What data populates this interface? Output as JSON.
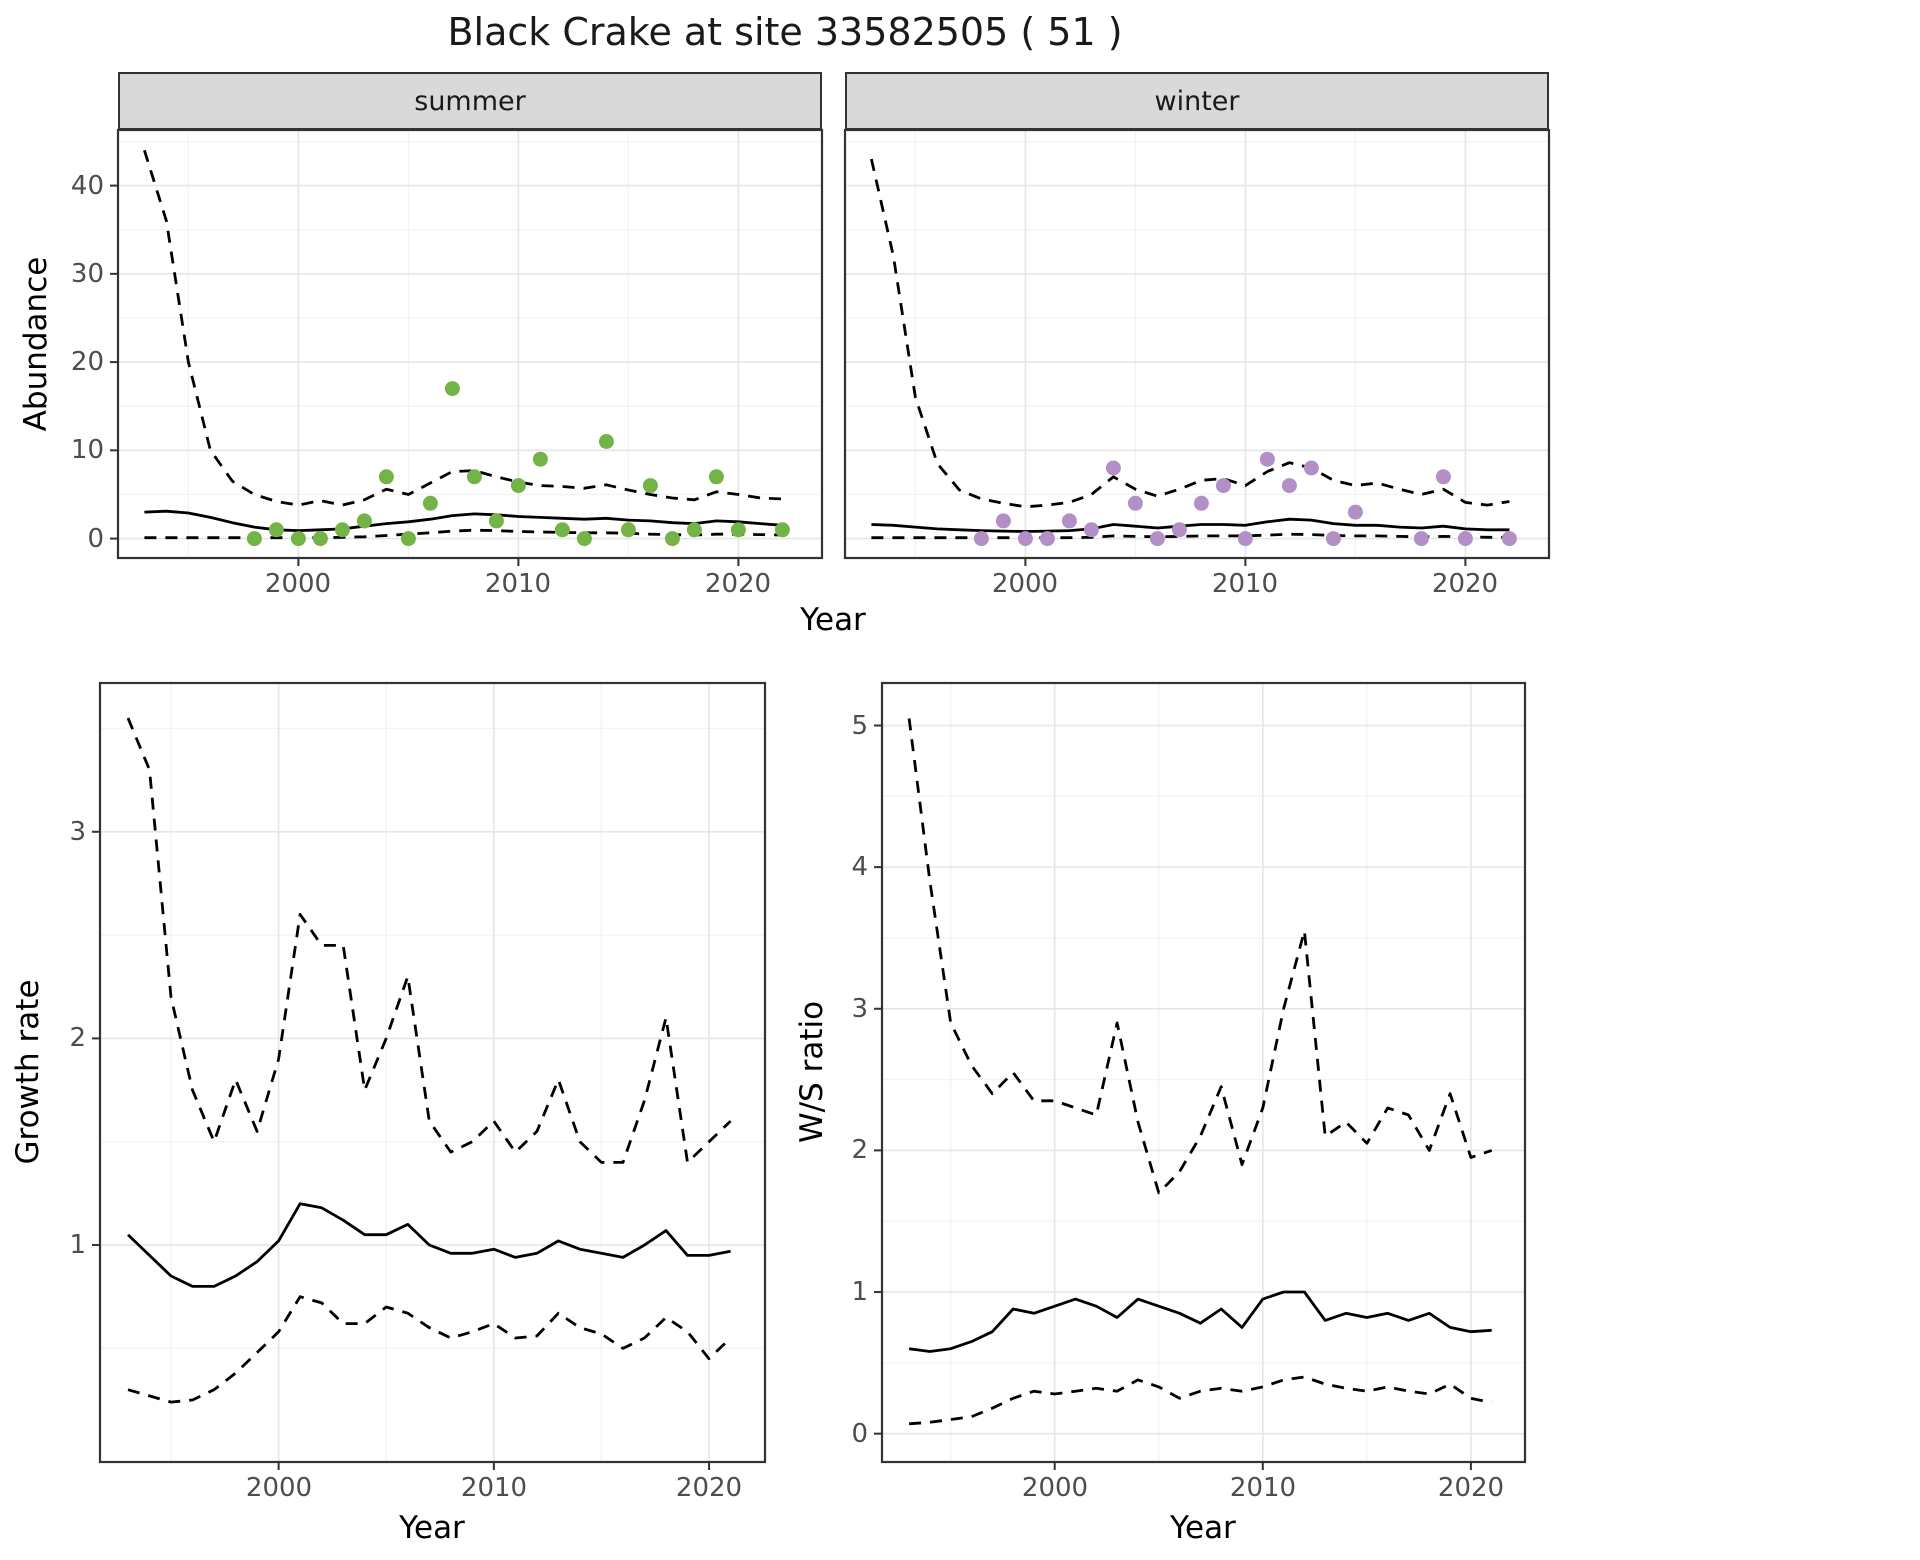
{
  "title": "Black Crake at site 33582505 ( 51 )",
  "labels": {
    "facet_summer": "summer",
    "facet_winter": "winter",
    "abundance_ylabel": "Abundance",
    "growth_ylabel": "Growth rate",
    "ws_ylabel": "W/S ratio",
    "year_xlabel": "Year"
  },
  "colors": {
    "summer_point": "#74b347",
    "winter_point": "#b38fc7",
    "line": "#000000",
    "grid_major": "#e6e6e6",
    "grid_minor": "#f3f3f3",
    "strip_bg": "#d9d9d9",
    "tick_label": "#4d4d4d",
    "panel_border": "#333333"
  },
  "chart_data": [
    {
      "panel": "abundance-summer",
      "type": "line+scatter",
      "facet_label": "summer",
      "xlabel": "Year",
      "ylabel": "Abundance",
      "xlim": [
        1991.8,
        2023.8
      ],
      "ylim": [
        -2.2,
        46.3
      ],
      "xticks": [
        2000,
        2010,
        2020
      ],
      "yticks": [
        0,
        10,
        20,
        30,
        40
      ],
      "x": [
        1993,
        1994,
        1995,
        1996,
        1997,
        1998,
        1999,
        2000,
        2001,
        2002,
        2003,
        2004,
        2005,
        2006,
        2007,
        2008,
        2009,
        2010,
        2011,
        2012,
        2013,
        2014,
        2015,
        2016,
        2017,
        2018,
        2019,
        2020,
        2021,
        2022
      ],
      "series": [
        {
          "name": "ci_upper",
          "style": "dashed",
          "y": [
            44,
            36,
            20,
            10,
            6.5,
            5,
            4.2,
            3.8,
            4.3,
            3.8,
            4.4,
            5.6,
            5,
            6.3,
            7.6,
            7.7,
            7,
            6.4,
            6,
            5.9,
            5.7,
            6.1,
            5.5,
            5,
            4.6,
            4.4,
            5.3,
            5,
            4.6,
            4.5
          ]
        },
        {
          "name": "fit_mean",
          "style": "solid",
          "y": [
            3,
            3.1,
            2.9,
            2.4,
            1.8,
            1.3,
            1,
            0.9,
            1,
            1.1,
            1.4,
            1.7,
            1.9,
            2.2,
            2.6,
            2.8,
            2.7,
            2.5,
            2.4,
            2.3,
            2.2,
            2.3,
            2.1,
            2,
            1.8,
            1.7,
            2,
            1.9,
            1.7,
            1.5
          ]
        },
        {
          "name": "ci_lower",
          "style": "dashed",
          "y": [
            0.1,
            0.1,
            0.1,
            0.1,
            0.1,
            0.1,
            0.1,
            0.1,
            0.1,
            0.15,
            0.2,
            0.35,
            0.5,
            0.65,
            0.85,
            0.95,
            0.9,
            0.8,
            0.75,
            0.7,
            0.65,
            0.65,
            0.6,
            0.5,
            0.45,
            0.4,
            0.5,
            0.5,
            0.45,
            0.4
          ]
        }
      ],
      "points": {
        "name": "observed_counts",
        "color_key": "summer_point",
        "x": [
          1998,
          1999,
          2000,
          2001,
          2002,
          2003,
          2004,
          2005,
          2006,
          2007,
          2008,
          2009,
          2010,
          2011,
          2012,
          2013,
          2014,
          2015,
          2016,
          2017,
          2018,
          2019,
          2020,
          2022
        ],
        "y": [
          0,
          1,
          0,
          0,
          1,
          2,
          7,
          0,
          4,
          17,
          7,
          2,
          6,
          9,
          1,
          0,
          11,
          1,
          6,
          0,
          1,
          7,
          1,
          1
        ]
      }
    },
    {
      "panel": "abundance-winter",
      "type": "line+scatter",
      "facet_label": "winter",
      "xlabel": "Year",
      "ylabel": "Abundance",
      "xlim": [
        1991.8,
        2023.8
      ],
      "ylim": [
        -2.2,
        46.3
      ],
      "xticks": [
        2000,
        2010,
        2020
      ],
      "yticks": [
        0,
        10,
        20,
        30,
        40
      ],
      "x": [
        1993,
        1994,
        1995,
        1996,
        1997,
        1998,
        1999,
        2000,
        2001,
        2002,
        2003,
        2004,
        2005,
        2006,
        2007,
        2008,
        2009,
        2010,
        2011,
        2012,
        2013,
        2014,
        2015,
        2016,
        2017,
        2018,
        2019,
        2020,
        2021,
        2022
      ],
      "series": [
        {
          "name": "ci_upper",
          "style": "dashed",
          "y": [
            43,
            32,
            16,
            8.5,
            5.5,
            4.5,
            4,
            3.6,
            3.8,
            4.1,
            5,
            7,
            5.6,
            4.8,
            5.6,
            6.6,
            6.8,
            6,
            7.6,
            8.6,
            8,
            6.6,
            6,
            6.3,
            5.6,
            5,
            5.6,
            4.1,
            3.8,
            4.2
          ]
        },
        {
          "name": "fit_mean",
          "style": "solid",
          "y": [
            1.6,
            1.5,
            1.3,
            1.1,
            1,
            0.9,
            0.85,
            0.8,
            0.85,
            0.9,
            1.1,
            1.6,
            1.4,
            1.2,
            1.4,
            1.6,
            1.6,
            1.5,
            1.9,
            2.2,
            2.1,
            1.7,
            1.5,
            1.5,
            1.3,
            1.2,
            1.4,
            1.1,
            1,
            1
          ]
        },
        {
          "name": "ci_lower",
          "style": "dashed",
          "y": [
            0.1,
            0.1,
            0.1,
            0.1,
            0.1,
            0.1,
            0.1,
            0.1,
            0.1,
            0.1,
            0.15,
            0.3,
            0.25,
            0.2,
            0.25,
            0.3,
            0.3,
            0.3,
            0.4,
            0.5,
            0.45,
            0.35,
            0.3,
            0.3,
            0.25,
            0.2,
            0.25,
            0.2,
            0.15,
            0.15
          ]
        }
      ],
      "points": {
        "name": "observed_counts",
        "color_key": "winter_point",
        "x": [
          1998,
          1999,
          2000,
          2001,
          2002,
          2003,
          2004,
          2005,
          2006,
          2007,
          2008,
          2009,
          2010,
          2011,
          2012,
          2013,
          2014,
          2015,
          2018,
          2019,
          2020,
          2022
        ],
        "y": [
          0,
          2,
          0,
          0,
          2,
          1,
          8,
          4,
          0,
          1,
          4,
          6,
          0,
          9,
          6,
          8,
          0,
          3,
          0,
          7,
          0,
          0
        ]
      }
    },
    {
      "panel": "growth-rate",
      "type": "line",
      "xlabel": "Year",
      "ylabel": "Growth rate",
      "xlim": [
        1991.7,
        2022.6
      ],
      "ylim": [
        -0.05,
        3.72
      ],
      "xticks": [
        2000,
        2010,
        2020
      ],
      "yticks": [
        1,
        2,
        3
      ],
      "x": [
        1993,
        1994,
        1995,
        1996,
        1997,
        1998,
        1999,
        2000,
        2001,
        2002,
        2003,
        2004,
        2005,
        2006,
        2007,
        2008,
        2009,
        2010,
        2011,
        2012,
        2013,
        2014,
        2015,
        2016,
        2017,
        2018,
        2019,
        2020,
        2021
      ],
      "series": [
        {
          "name": "ci_upper",
          "style": "dashed",
          "y": [
            3.55,
            3.3,
            2.2,
            1.75,
            1.5,
            1.8,
            1.55,
            1.9,
            2.6,
            2.45,
            2.45,
            1.75,
            2,
            2.3,
            1.6,
            1.45,
            1.5,
            1.6,
            1.45,
            1.55,
            1.8,
            1.5,
            1.4,
            1.4,
            1.7,
            2.1,
            1.4,
            1.5,
            1.6
          ]
        },
        {
          "name": "fit_mean",
          "style": "solid",
          "y": [
            1.05,
            0.95,
            0.85,
            0.8,
            0.8,
            0.85,
            0.92,
            1.02,
            1.2,
            1.18,
            1.12,
            1.05,
            1.05,
            1.1,
            1,
            0.96,
            0.96,
            0.98,
            0.94,
            0.96,
            1.02,
            0.98,
            0.96,
            0.94,
            1,
            1.07,
            0.95,
            0.95,
            0.97
          ]
        },
        {
          "name": "ci_lower",
          "style": "dashed",
          "y": [
            0.3,
            0.27,
            0.24,
            0.25,
            0.3,
            0.38,
            0.48,
            0.58,
            0.75,
            0.72,
            0.62,
            0.62,
            0.7,
            0.67,
            0.6,
            0.55,
            0.58,
            0.62,
            0.55,
            0.56,
            0.67,
            0.6,
            0.57,
            0.5,
            0.55,
            0.65,
            0.58,
            0.45,
            0.55
          ]
        }
      ]
    },
    {
      "panel": "winter-summer-ratio",
      "type": "line",
      "xlabel": "Year",
      "ylabel": "W/S ratio",
      "xlim": [
        1991.7,
        2022.6
      ],
      "ylim": [
        -0.2,
        5.3
      ],
      "xticks": [
        2000,
        2010,
        2020
      ],
      "yticks": [
        0,
        1,
        2,
        3,
        4,
        5
      ],
      "x": [
        1993,
        1994,
        1995,
        1996,
        1997,
        1998,
        1999,
        2000,
        2001,
        2002,
        2003,
        2004,
        2005,
        2006,
        2007,
        2008,
        2009,
        2010,
        2011,
        2012,
        2013,
        2014,
        2015,
        2016,
        2017,
        2018,
        2019,
        2020,
        2021
      ],
      "series": [
        {
          "name": "ci_upper",
          "style": "dashed",
          "y": [
            5.05,
            3.9,
            2.9,
            2.6,
            2.4,
            2.55,
            2.35,
            2.35,
            2.3,
            2.25,
            2.9,
            2.2,
            1.7,
            1.85,
            2.1,
            2.45,
            1.9,
            2.3,
            3,
            3.55,
            2.1,
            2.2,
            2.05,
            2.3,
            2.25,
            2,
            2.4,
            1.95,
            2
          ]
        },
        {
          "name": "fit_mean",
          "style": "solid",
          "y": [
            0.6,
            0.58,
            0.6,
            0.65,
            0.72,
            0.88,
            0.85,
            0.9,
            0.95,
            0.9,
            0.82,
            0.95,
            0.9,
            0.85,
            0.78,
            0.88,
            0.75,
            0.95,
            1,
            1,
            0.8,
            0.85,
            0.82,
            0.85,
            0.8,
            0.85,
            0.75,
            0.72,
            0.73
          ]
        },
        {
          "name": "ci_lower",
          "style": "dashed",
          "y": [
            0.07,
            0.08,
            0.1,
            0.12,
            0.18,
            0.25,
            0.3,
            0.28,
            0.3,
            0.32,
            0.3,
            0.38,
            0.33,
            0.25,
            0.3,
            0.32,
            0.3,
            0.33,
            0.38,
            0.4,
            0.35,
            0.32,
            0.3,
            0.33,
            0.3,
            0.28,
            0.35,
            0.25,
            0.22
          ]
        }
      ]
    }
  ]
}
